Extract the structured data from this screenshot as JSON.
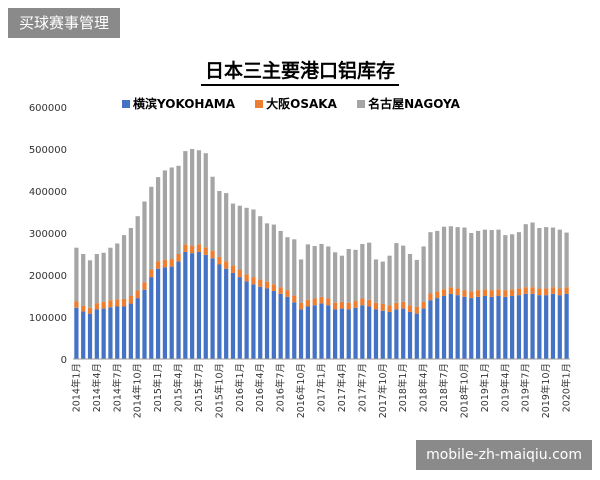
{
  "badge": "买球赛事管理",
  "footer": "mobile-zh-maiqiu.com",
  "chart_data": {
    "type": "bar",
    "stacked": true,
    "title": "日本三主要港口铝库存",
    "ylim": [
      0,
      600000
    ],
    "yticks": [
      0,
      100000,
      200000,
      300000,
      400000,
      500000,
      600000
    ],
    "legend_position": "top",
    "grid": false,
    "categories": [
      "2014年1月",
      "2014年2月",
      "2014年3月",
      "2014年4月",
      "2014年5月",
      "2014年6月",
      "2014年7月",
      "2014年8月",
      "2014年9月",
      "2014年10月",
      "2014年11月",
      "2014年12月",
      "2015年1月",
      "2015年2月",
      "2015年3月",
      "2015年4月",
      "2015年5月",
      "2015年6月",
      "2015年7月",
      "2015年8月",
      "2015年9月",
      "2015年10月",
      "2015年11月",
      "2015年12月",
      "2016年1月",
      "2016年2月",
      "2016年3月",
      "2016年4月",
      "2016年5月",
      "2016年6月",
      "2016年7月",
      "2016年8月",
      "2016年9月",
      "2016年10月",
      "2016年11月",
      "2016年12月",
      "2017年1月",
      "2017年2月",
      "2017年3月",
      "2017年4月",
      "2017年5月",
      "2017年6月",
      "2017年7月",
      "2017年8月",
      "2017年9月",
      "2017年10月",
      "2017年11月",
      "2017年12月",
      "2018年1月",
      "2018年2月",
      "2018年3月",
      "2018年4月",
      "2018年5月",
      "2018年6月",
      "2018年7月",
      "2018年8月",
      "2018年9月",
      "2018年10月",
      "2018年11月",
      "2018年12月",
      "2019年1月",
      "2019年2月",
      "2019年3月",
      "2019年4月",
      "2019年5月",
      "2019年6月",
      "2019年7月",
      "2019年8月",
      "2019年9月",
      "2019年10月",
      "2019年11月",
      "2019年12月",
      "2020年1月"
    ],
    "xtick_labels": [
      "2014年1月",
      "2014年4月",
      "2014年7月",
      "2014年10月",
      "2015年1月",
      "2015年4月",
      "2015年7月",
      "2015年10月",
      "2016年1月",
      "2016年4月",
      "2016年7月",
      "2016年10月",
      "2017年1月",
      "2017年4月",
      "2017年7月",
      "2017年10月",
      "2018年1月",
      "2018年4月",
      "2018年7月",
      "2018年10月",
      "2019年1月",
      "2019年4月",
      "2019年7月",
      "2019年10月",
      "2020年1月"
    ],
    "series": [
      {
        "name": "横滨YOKOHAMA",
        "color": "#4472C4",
        "values": [
          122000,
          113000,
          108000,
          118000,
          120000,
          123000,
          125000,
          125000,
          132000,
          145000,
          165000,
          195000,
          215000,
          218000,
          220000,
          232000,
          255000,
          252000,
          255000,
          248000,
          240000,
          225000,
          215000,
          205000,
          195000,
          185000,
          178000,
          172000,
          168000,
          162000,
          155000,
          148000,
          135000,
          118000,
          125000,
          128000,
          132000,
          128000,
          118000,
          120000,
          118000,
          122000,
          128000,
          125000,
          118000,
          115000,
          112000,
          118000,
          120000,
          112000,
          108000,
          120000,
          140000,
          145000,
          150000,
          155000,
          152000,
          148000,
          145000,
          148000,
          150000,
          148000,
          150000,
          148000,
          150000,
          152000,
          155000,
          155000,
          152000,
          152000,
          155000,
          152000,
          155000
        ]
      },
      {
        "name": "大阪OSAKA",
        "color": "#ED7D31",
        "values": [
          15000,
          14000,
          14000,
          15000,
          16000,
          17000,
          17000,
          18000,
          18000,
          18000,
          18000,
          18000,
          18000,
          18000,
          18000,
          18000,
          18000,
          18000,
          18000,
          18000,
          18000,
          18000,
          18000,
          18000,
          18000,
          17000,
          17000,
          17000,
          16000,
          16000,
          16000,
          16000,
          16000,
          16000,
          16000,
          16000,
          16000,
          16000,
          16000,
          16000,
          16000,
          16000,
          16000,
          16000,
          16000,
          16000,
          16000,
          16000,
          16000,
          16000,
          16000,
          16000,
          16000,
          16000,
          16000,
          16000,
          16000,
          16000,
          16000,
          16000,
          16000,
          16000,
          16000,
          16000,
          16000,
          16000,
          16000,
          16000,
          16000,
          16000,
          16000,
          16000,
          16000
        ]
      },
      {
        "name": "名古屋NAGOYA",
        "color": "#A5A5A5",
        "values": [
          128000,
          123000,
          113000,
          117000,
          117000,
          125000,
          133000,
          152000,
          162000,
          177000,
          192000,
          197000,
          200000,
          213000,
          218000,
          210000,
          222000,
          230000,
          224000,
          224000,
          176000,
          157000,
          162000,
          147000,
          152000,
          158000,
          161000,
          151000,
          139000,
          142000,
          134000,
          126000,
          134000,
          103000,
          132000,
          125000,
          126000,
          124000,
          120000,
          110000,
          128000,
          122000,
          130000,
          136000,
          103000,
          101000,
          118000,
          142000,
          134000,
          122000,
          112000,
          132000,
          146000,
          144000,
          149000,
          145000,
          146000,
          149000,
          139000,
          141000,
          142000,
          143000,
          142000,
          131000,
          131000,
          134000,
          150000,
          154000,
          144000,
          146000,
          142000,
          140000,
          130000
        ]
      }
    ]
  }
}
